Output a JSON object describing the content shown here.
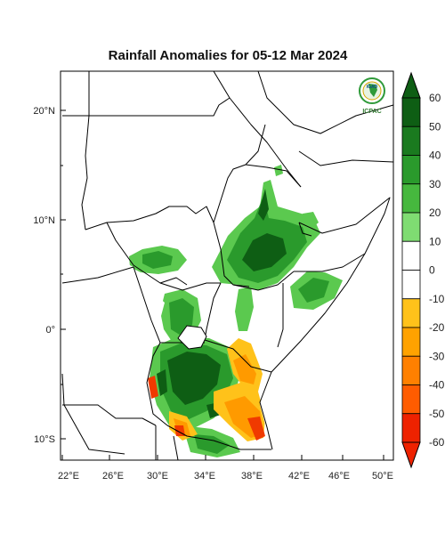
{
  "title": "Rainfall Anomalies for 05-12 Mar 2024",
  "logo": {
    "top_text": "IGAD",
    "bottom_text": "ICPAC"
  },
  "lat_ticks": [
    "20°N",
    "10°N",
    "0°",
    "10°S"
  ],
  "lon_ticks": [
    "22°E",
    "26°E",
    "30°E",
    "34°E",
    "38°E",
    "42°E",
    "46°E",
    "50°E"
  ],
  "colorbar": {
    "labels": [
      "60",
      "50",
      "40",
      "30",
      "20",
      "10",
      "0",
      "-10",
      "-20",
      "-30",
      "-40",
      "-50",
      "-60"
    ],
    "colors_top_to_bottom": [
      "#0e5e14",
      "#1a7a1f",
      "#2a9a2c",
      "#46b83e",
      "#7fdc72",
      "#ffffff",
      "#ffffff",
      "#ffc21a",
      "#ffa200",
      "#ff8000",
      "#ff5c00",
      "#ee2200"
    ]
  },
  "colors": {
    "wet_strong": "#0e5e14",
    "wet_medium": "#2a9a2c",
    "wet_light": "#5bc94f",
    "dry_light": "#ffc21a",
    "dry_medium": "#ff9a00",
    "dry_strong": "#f03a00"
  }
}
